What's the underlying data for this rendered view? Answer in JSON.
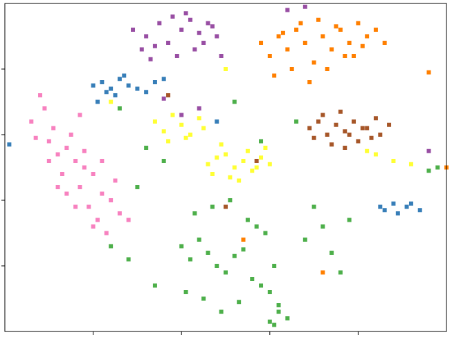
{
  "chart_data": {
    "type": "scatter",
    "xlim": [
      0,
      5
    ],
    "ylim": [
      0,
      5
    ],
    "xticks": [
      1,
      2,
      3,
      4
    ],
    "yticks": [
      1,
      2,
      3,
      4
    ],
    "series": [
      {
        "color": "#f781bf",
        "x": [
          0.3,
          0.45,
          0.5,
          0.6,
          0.55,
          0.7,
          0.8,
          0.75,
          0.9,
          0.85,
          1.0,
          1.1,
          0.95,
          1.2,
          1.05,
          1.3,
          1.15,
          0.65,
          0.4,
          0.5,
          0.8,
          1.0,
          1.25,
          0.9,
          0.7,
          1.4,
          0.35,
          1.1,
          0.6,
          0.85
        ],
        "values": [
          3.2,
          3.4,
          2.9,
          2.7,
          3.1,
          2.8,
          2.6,
          3.0,
          2.5,
          2.2,
          2.4,
          2.1,
          1.9,
          2.0,
          1.7,
          1.8,
          1.5,
          2.4,
          3.6,
          2.6,
          1.9,
          1.6,
          2.3,
          2.75,
          2.1,
          1.7,
          2.95,
          2.6,
          2.2,
          3.3
        ]
      },
      {
        "color": "#984ea3",
        "x": [
          1.45,
          1.6,
          1.75,
          1.9,
          2.0,
          2.1,
          2.2,
          2.3,
          2.4,
          1.55,
          1.7,
          1.85,
          2.05,
          2.15,
          2.25,
          2.35,
          1.65,
          1.95,
          2.45,
          3.2,
          3.4,
          4.8,
          2.0,
          1.8,
          2.2
        ],
        "values": [
          4.6,
          4.5,
          4.7,
          4.8,
          4.6,
          4.75,
          4.55,
          4.7,
          4.5,
          4.3,
          4.35,
          4.4,
          4.85,
          4.3,
          4.4,
          4.65,
          4.15,
          4.2,
          4.2,
          4.9,
          4.95,
          2.75,
          3.3,
          3.55,
          3.4
        ]
      },
      {
        "color": "#377eb8",
        "x": [
          1.0,
          1.1,
          1.2,
          1.3,
          1.15,
          1.25,
          1.4,
          1.5,
          1.6,
          1.7,
          1.8,
          1.35,
          1.05,
          0.05,
          4.25,
          4.3,
          4.4,
          4.45,
          4.55,
          4.6,
          4.7,
          2.4
        ],
        "values": [
          3.75,
          3.8,
          3.7,
          3.85,
          3.65,
          3.6,
          3.75,
          3.7,
          3.65,
          3.8,
          3.85,
          3.9,
          3.5,
          2.85,
          1.9,
          1.85,
          1.95,
          1.8,
          1.9,
          1.95,
          1.85,
          3.2
        ]
      },
      {
        "color": "#ffff33",
        "x": [
          2.3,
          2.4,
          2.5,
          2.6,
          2.7,
          2.8,
          2.9,
          3.0,
          2.35,
          2.55,
          2.75,
          2.95,
          2.45,
          2.65,
          2.85,
          1.7,
          1.8,
          1.9,
          2.0,
          2.1,
          2.2,
          1.85,
          2.05,
          2.25,
          4.1,
          4.2,
          4.4,
          4.6,
          1.2,
          2.5
        ],
        "values": [
          2.55,
          2.65,
          2.7,
          2.5,
          2.6,
          2.45,
          2.65,
          2.55,
          2.4,
          2.35,
          2.75,
          2.8,
          2.85,
          2.3,
          2.5,
          3.2,
          3.05,
          3.3,
          3.15,
          3.0,
          3.25,
          2.9,
          2.95,
          3.1,
          2.75,
          2.7,
          2.6,
          2.55,
          3.5,
          4.0
        ]
      },
      {
        "color": "#ff7f00",
        "x": [
          2.9,
          3.0,
          3.1,
          3.2,
          3.3,
          3.4,
          3.5,
          3.6,
          3.7,
          3.8,
          3.9,
          4.0,
          4.1,
          4.2,
          3.05,
          3.25,
          3.45,
          3.65,
          3.85,
          4.05,
          3.15,
          3.35,
          3.55,
          3.75,
          3.95,
          4.3,
          4.8,
          5.0,
          2.7,
          3.6
        ],
        "values": [
          4.4,
          4.2,
          4.5,
          4.3,
          4.6,
          4.4,
          4.1,
          4.5,
          4.3,
          4.6,
          4.4,
          4.7,
          4.5,
          4.6,
          3.9,
          4.0,
          3.8,
          4.0,
          4.2,
          4.35,
          4.55,
          4.7,
          4.75,
          4.65,
          4.2,
          4.4,
          3.95,
          2.5,
          1.4,
          0.9
        ]
      },
      {
        "color": "#a65628",
        "x": [
          3.45,
          3.55,
          3.65,
          3.75,
          3.85,
          3.95,
          4.05,
          4.15,
          4.25,
          4.35,
          3.6,
          3.8,
          4.0,
          4.2,
          3.5,
          3.7,
          3.9,
          4.1,
          3.85,
          2.85,
          1.85,
          2.5
        ],
        "values": [
          3.1,
          3.2,
          3.0,
          3.15,
          3.05,
          3.2,
          3.1,
          2.95,
          3.0,
          3.15,
          3.3,
          3.35,
          2.9,
          3.25,
          2.95,
          2.85,
          3.0,
          3.1,
          2.8,
          2.6,
          3.6,
          1.9
        ]
      },
      {
        "color": "#4daf4a",
        "x": [
          2.0,
          2.1,
          2.2,
          2.3,
          2.4,
          2.5,
          2.6,
          2.7,
          2.8,
          2.9,
          3.0,
          3.1,
          3.2,
          2.05,
          2.25,
          2.45,
          2.65,
          2.85,
          3.05,
          2.15,
          2.35,
          2.55,
          2.75,
          2.95,
          3.0,
          3.05,
          3.1,
          3.5,
          3.6,
          3.7,
          3.8,
          3.9,
          3.4,
          1.2,
          1.4,
          1.6,
          1.8,
          1.7,
          2.6,
          3.3,
          4.8,
          4.9,
          1.5,
          2.9,
          1.3
        ],
        "values": [
          1.3,
          1.1,
          1.4,
          1.2,
          1.0,
          0.9,
          1.15,
          1.25,
          0.8,
          0.7,
          0.6,
          0.4,
          0.2,
          0.6,
          0.5,
          0.3,
          0.45,
          1.6,
          1.0,
          1.8,
          1.9,
          2.0,
          1.7,
          1.5,
          0.15,
          0.1,
          0.3,
          1.9,
          1.6,
          1.2,
          0.9,
          1.7,
          1.4,
          1.3,
          1.1,
          2.8,
          2.6,
          0.7,
          3.5,
          3.2,
          2.45,
          2.5,
          2.2,
          2.9,
          3.4
        ]
      }
    ]
  }
}
